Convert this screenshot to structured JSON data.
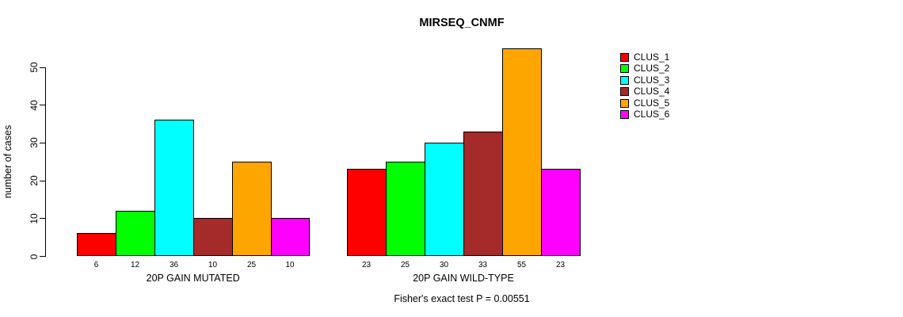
{
  "chart_data": {
    "type": "bar",
    "title": "MIRSEQ_CNMF",
    "ylabel": "number of cases",
    "xlabel": "",
    "ylim": [
      0,
      55
    ],
    "yticks": [
      0,
      10,
      20,
      30,
      40,
      50
    ],
    "grid": false,
    "legend_position": "right-outside-top",
    "categories": [
      "20P GAIN MUTATED",
      "20P GAIN WILD-TYPE"
    ],
    "groups": [
      {
        "label": "20P GAIN MUTATED",
        "values": [
          6,
          12,
          36,
          10,
          25,
          10
        ]
      },
      {
        "label": "20P GAIN WILD-TYPE",
        "values": [
          23,
          25,
          30,
          33,
          55,
          23
        ]
      }
    ],
    "series": [
      {
        "name": "CLUS_1",
        "color": "#FF0000",
        "values": [
          6,
          23
        ]
      },
      {
        "name": "CLUS_2",
        "color": "#00FF00",
        "values": [
          12,
          25
        ]
      },
      {
        "name": "CLUS_3",
        "color": "#00FFFF",
        "values": [
          36,
          30
        ]
      },
      {
        "name": "CLUS_4",
        "color": "#A52A2A",
        "values": [
          10,
          33
        ]
      },
      {
        "name": "CLUS_5",
        "color": "#FFA500",
        "values": [
          25,
          55
        ]
      },
      {
        "name": "CLUS_6",
        "color": "#FF00FF",
        "values": [
          10,
          23
        ]
      }
    ],
    "annotation": "Fisher's exact test P = 0.00551"
  }
}
